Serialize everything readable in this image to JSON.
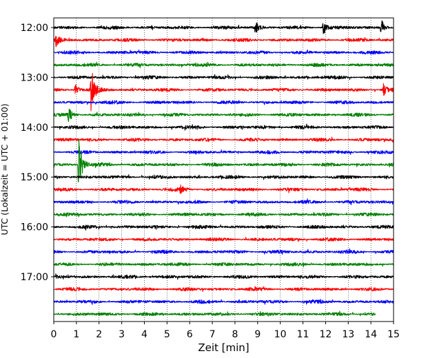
{
  "chart_data": {
    "type": "line",
    "title": "",
    "xlabel": "Zeit  [min]",
    "ylabel": "UTC (Lokalzeit = UTC + 01:00)",
    "xlim": [
      0,
      15
    ],
    "x_ticks": [
      "0",
      "1",
      "2",
      "3",
      "4",
      "5",
      "6",
      "7",
      "8",
      "9",
      "10",
      "11",
      "12",
      "13",
      "14",
      "15"
    ],
    "y_tick_labels": [
      "12:00",
      "13:00",
      "14:00",
      "15:00",
      "16:00",
      "17:00"
    ],
    "trace_interval_min": 15,
    "grid": "vertical dotted lines at each minute",
    "trace_color_cycle": [
      "#000000",
      "#ff0000",
      "#0000ff",
      "#008000"
    ],
    "traces": [
      {
        "start": "12:00",
        "color": "#000000",
        "end_min": 15
      },
      {
        "start": "12:15",
        "color": "#ff0000",
        "end_min": 15
      },
      {
        "start": "12:30",
        "color": "#0000ff",
        "end_min": 15
      },
      {
        "start": "12:45",
        "color": "#008000",
        "end_min": 15
      },
      {
        "start": "13:00",
        "color": "#000000",
        "end_min": 15
      },
      {
        "start": "13:15",
        "color": "#ff0000",
        "end_min": 15
      },
      {
        "start": "13:30",
        "color": "#0000ff",
        "end_min": 15
      },
      {
        "start": "13:45",
        "color": "#008000",
        "end_min": 15
      },
      {
        "start": "14:00",
        "color": "#000000",
        "end_min": 15
      },
      {
        "start": "14:15",
        "color": "#ff0000",
        "end_min": 15
      },
      {
        "start": "14:30",
        "color": "#0000ff",
        "end_min": 15
      },
      {
        "start": "14:45",
        "color": "#008000",
        "end_min": 15
      },
      {
        "start": "15:00",
        "color": "#000000",
        "end_min": 15
      },
      {
        "start": "15:15",
        "color": "#ff0000",
        "end_min": 15
      },
      {
        "start": "15:30",
        "color": "#0000ff",
        "end_min": 15
      },
      {
        "start": "15:45",
        "color": "#008000",
        "end_min": 15
      },
      {
        "start": "16:00",
        "color": "#000000",
        "end_min": 15
      },
      {
        "start": "16:15",
        "color": "#ff0000",
        "end_min": 15
      },
      {
        "start": "16:30",
        "color": "#0000ff",
        "end_min": 15
      },
      {
        "start": "16:45",
        "color": "#008000",
        "end_min": 15
      },
      {
        "start": "17:00",
        "color": "#000000",
        "end_min": 15
      },
      {
        "start": "17:15",
        "color": "#ff0000",
        "end_min": 15
      },
      {
        "start": "17:30",
        "color": "#0000ff",
        "end_min": 15
      },
      {
        "start": "17:45",
        "color": "#008000",
        "end_min": 14.2
      }
    ],
    "events": [
      {
        "trace": "12:15",
        "minute": 0.1,
        "amplitude": 0.45
      },
      {
        "trace": "13:15",
        "minute": 1.65,
        "amplitude": 2.2
      },
      {
        "trace": "13:15",
        "minute": 0.95,
        "amplitude": 0.5
      },
      {
        "trace": "13:15",
        "minute": 14.55,
        "amplitude": 0.5
      },
      {
        "trace": "13:45",
        "minute": 0.65,
        "amplitude": 0.6
      },
      {
        "trace": "14:45",
        "minute": 1.1,
        "amplitude": 2.8
      },
      {
        "trace": "12:00",
        "minute": 8.9,
        "amplitude": 0.5
      },
      {
        "trace": "12:00",
        "minute": 11.9,
        "amplitude": 0.5
      },
      {
        "trace": "12:00",
        "minute": 14.45,
        "amplitude": 0.75
      },
      {
        "trace": "15:15",
        "minute": 5.6,
        "amplitude": 0.4
      }
    ]
  }
}
